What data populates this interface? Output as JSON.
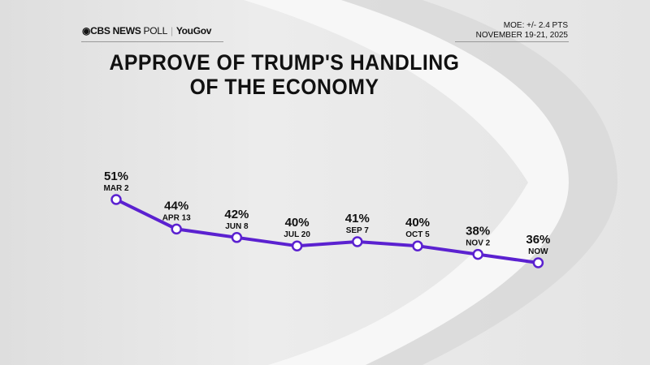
{
  "header": {
    "brand": "CBS NEWS",
    "brand_suffix": "POLL",
    "partner": "YouGov",
    "moe": "MOE: +/- 2.4 PTS",
    "dates": "NOVEMBER 19-21, 2025"
  },
  "colors": {
    "line": "#5b21d0",
    "marker_fill": "#ffffff",
    "text": "#111111"
  },
  "chart_data": {
    "type": "line",
    "title": "APPROVE OF TRUMP'S HANDLING OF THE ECONOMY",
    "title_lines": [
      "APPROVE OF TRUMP'S HANDLING",
      "OF THE ECONOMY"
    ],
    "categories": [
      "MAR 2",
      "APR 13",
      "JUN 8",
      "JUL 20",
      "SEP 7",
      "OCT 5",
      "NOV 2",
      "NOW"
    ],
    "values": [
      51,
      44,
      42,
      40,
      41,
      40,
      38,
      36
    ],
    "value_labels": [
      "51%",
      "44%",
      "42%",
      "40%",
      "41%",
      "40%",
      "38%",
      "36%"
    ],
    "grid": false,
    "unit": "%"
  }
}
